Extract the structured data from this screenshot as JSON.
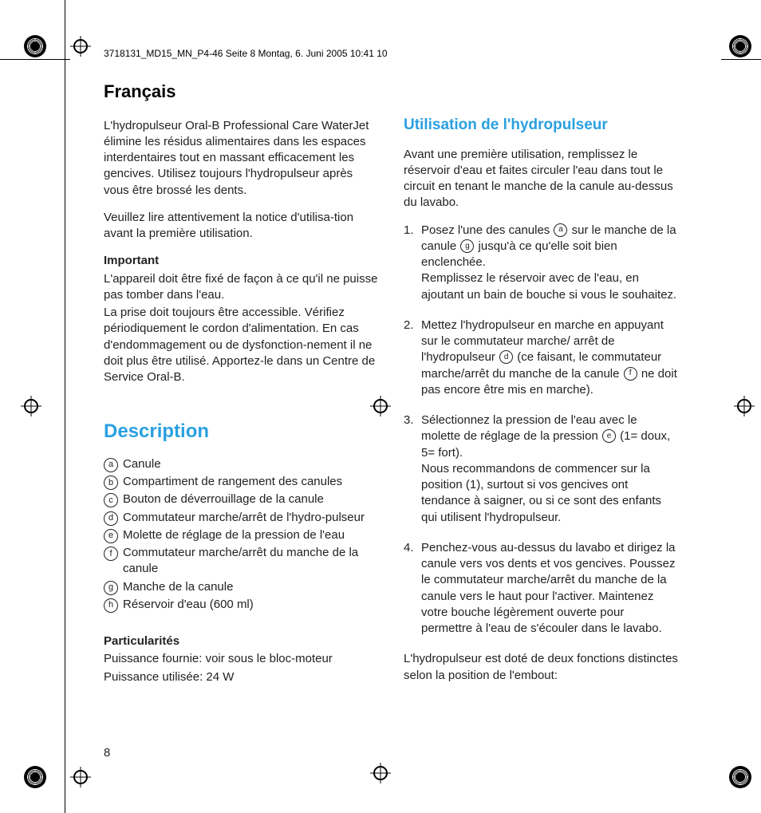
{
  "crop": {
    "header": "3718131_MD15_MN_P4-46  Seite 8  Montag, 6. Juni 2005  10:41 10"
  },
  "page_number": "8",
  "colors": {
    "heading_blue": "#2aa0e0",
    "body_text": "#222222",
    "background": "#ffffff"
  },
  "typography": {
    "body_fontsize_pt": 11,
    "h1_fontsize_pt": 16,
    "h2_big_fontsize_pt": 18,
    "h2_med_fontsize_pt": 14,
    "font_family": "Helvetica"
  },
  "left": {
    "lang_title": "Français",
    "intro_1": "L'hydropulseur Oral-B Professional Care WaterJet élimine les résidus alimentaires dans les espaces interdentaires tout en massant efficacement les gencives. Utilisez toujours l'hydropulseur après vous être brossé les dents.",
    "intro_2": "Veuillez lire attentivement la notice d'utilisa-tion avant la première utilisation.",
    "important_label": "Important",
    "important_1": "L'appareil doit être fixé de façon à ce qu'il ne puisse pas tomber dans l'eau.",
    "important_2": "La prise doit toujours être accessible. Vérifiez périodiquement le cordon d'alimentation. En cas d'endommagement ou de dysfonction-nement il ne doit plus être utilisé. Apportez-le dans un Centre de Service Oral-B.",
    "desc_heading": "Description",
    "desc_items": [
      {
        "letter": "a",
        "text": "Canule"
      },
      {
        "letter": "b",
        "text": "Compartiment de rangement des canules"
      },
      {
        "letter": "c",
        "text": "Bouton de déverrouillage de la canule"
      },
      {
        "letter": "d",
        "text": "Commutateur marche/arrêt de l'hydro-pulseur"
      },
      {
        "letter": "e",
        "text": "Molette de réglage de la pression de l'eau"
      },
      {
        "letter": "f",
        "text": "Commutateur marche/arrêt du manche de la canule"
      },
      {
        "letter": "g",
        "text": "Manche de la canule"
      },
      {
        "letter": "h",
        "text": "Réservoir d'eau (600 ml)"
      }
    ],
    "partic_label": "Particularités",
    "partic_1": "Puissance fournie: voir sous le bloc-moteur",
    "partic_2": "Puissance utilisée: 24 W"
  },
  "right": {
    "use_heading": "Utilisation de l'hydropulseur",
    "use_intro": "Avant une première utilisation, remplissez le réservoir d'eau et faites circuler l'eau dans tout le circuit en tenant le manche de la canule au-dessus du lavabo.",
    "steps": [
      {
        "n": "1.",
        "pre": "Posez l'une des canules ",
        "ref1": "a",
        "mid1": " sur le manche de la canule ",
        "ref2": "g",
        "post1": " jusqu'à ce qu'elle soit bien enclenchée.",
        "extra": "Remplissez le réservoir avec de l'eau, en ajoutant un bain de bouche si vous le souhaitez."
      },
      {
        "n": "2.",
        "pre": "Mettez l'hydropulseur en marche en appuyant sur le commutateur marche/ arrêt de l'hydropulseur ",
        "ref1": "d",
        "mid1": " (ce faisant, le commutateur marche/arrêt du manche de la canule ",
        "ref2": "f",
        "post1": " ne doit pas encore être mis en marche)."
      },
      {
        "n": "3.",
        "pre": "Sélectionnez la pression de l'eau avec le molette de réglage de la pression ",
        "ref1": "e",
        "post1": " (1= doux, 5= fort).",
        "extra": "Nous recommandons de commencer sur la position (1), surtout si vos gencives ont tendance à saigner, ou si ce sont des enfants qui utilisent l'hydropulseur."
      },
      {
        "n": "4.",
        "plain": "Penchez-vous au-dessus du lavabo et dirigez la canule vers vos dents et vos gencives. Poussez le commutateur marche/arrêt du manche de la canule vers le haut pour l'activer. Maintenez votre bouche légèrement ouverte pour permettre à l'eau de s'écouler dans le lavabo."
      }
    ],
    "closing": "L'hydropulseur est doté de deux fonctions distinctes selon la position de l'embout:"
  }
}
